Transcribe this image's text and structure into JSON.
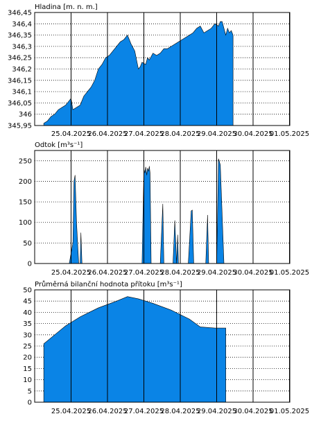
{
  "fill_color": "#0a84e6",
  "chart_data": [
    {
      "type": "area",
      "title": "Hladina [m. n. m.]",
      "ylim": [
        345.95,
        346.45
      ],
      "y_ticks": [
        "346,45",
        "346,4",
        "346,35",
        "346,3",
        "346,25",
        "346,2",
        "346,15",
        "346,1",
        "346,05",
        "346",
        "345,95"
      ],
      "x_ticks": [
        "25.04.2025",
        "26.04.2025",
        "27.04.2025",
        "28.04.2025",
        "29.04.2025",
        "30.04.2025",
        "01.05.2025"
      ],
      "grid": true,
      "x_days": [
        0,
        0.1,
        0.2,
        0.3,
        0.4,
        0.5,
        0.6,
        0.7,
        0.75,
        0.8,
        0.9,
        1.0,
        1.1,
        1.2,
        1.3,
        1.4,
        1.5,
        1.6,
        1.7,
        1.8,
        1.9,
        2.0,
        2.1,
        2.2,
        2.3,
        2.4,
        2.5,
        2.6,
        2.65,
        2.7,
        2.8,
        2.85,
        2.9,
        3.0,
        3.1,
        3.2,
        3.3,
        3.4,
        3.5,
        3.6,
        3.7,
        3.8,
        3.9,
        4.0,
        4.1,
        4.2,
        4.3,
        4.4,
        4.5,
        4.6,
        4.7,
        4.8,
        4.85,
        4.9,
        5.0,
        5.05,
        5.1,
        5.15,
        5.2
      ],
      "values": [
        345.96,
        345.97,
        345.99,
        346.0,
        346.02,
        346.03,
        346.04,
        346.06,
        346.07,
        346.02,
        346.03,
        346.04,
        346.08,
        346.1,
        346.12,
        346.15,
        346.2,
        346.22,
        346.25,
        346.26,
        346.28,
        346.3,
        346.32,
        346.33,
        346.35,
        346.31,
        346.28,
        346.2,
        346.21,
        346.23,
        346.22,
        346.25,
        346.24,
        346.27,
        346.26,
        346.27,
        346.29,
        346.29,
        346.3,
        346.31,
        346.32,
        346.33,
        346.34,
        346.35,
        346.36,
        346.38,
        346.39,
        346.36,
        346.37,
        346.38,
        346.4,
        346.39,
        346.41,
        346.41,
        346.35,
        346.38,
        346.36,
        346.37,
        346.35
      ]
    },
    {
      "type": "area",
      "title": "Odtok [m³s⁻¹]",
      "ylim": [
        0,
        275
      ],
      "y_ticks": [
        "250",
        "200",
        "150",
        "100",
        "50",
        "0"
      ],
      "x_ticks": [
        "25.04.2025",
        "26.04.2025",
        "27.04.2025",
        "28.04.2025",
        "29.04.2025",
        "30.04.2025",
        "01.05.2025"
      ],
      "grid": true,
      "x_days": [
        0,
        0.7,
        0.8,
        0.83,
        0.86,
        0.9,
        0.96,
        1.0,
        1.02,
        1.05,
        1.5,
        2.7,
        2.75,
        2.78,
        2.8,
        2.83,
        2.85,
        2.88,
        2.9,
        2.92,
        2.95,
        3.05,
        3.2,
        3.27,
        3.3,
        3.4,
        3.55,
        3.6,
        3.65,
        3.68,
        3.7,
        3.73,
        3.8,
        3.97,
        4.05,
        4.08,
        4.12,
        4.3,
        4.45,
        4.5,
        4.53,
        4.6,
        4.75,
        4.8,
        4.85,
        4.95,
        5.05,
        5.15,
        5.25,
        5.6
      ],
      "values": [
        0,
        0,
        50,
        200,
        215,
        100,
        0,
        0,
        75,
        0,
        0,
        0,
        230,
        220,
        235,
        215,
        232,
        225,
        237,
        220,
        0,
        0,
        0,
        145,
        0,
        0,
        0,
        105,
        0,
        70,
        0,
        0,
        0,
        0,
        128,
        130,
        0,
        0,
        0,
        118,
        0,
        0,
        0,
        255,
        240,
        0,
        0,
        0,
        0,
        0
      ]
    },
    {
      "type": "area",
      "title": "Průměrná bilanční hodnota přítoku   [m³s⁻¹]",
      "ylim": [
        0,
        50
      ],
      "y_ticks": [
        "50",
        "45",
        "40",
        "35",
        "30",
        "25",
        "20",
        "15",
        "10",
        "5",
        "0"
      ],
      "x_ticks": [
        "25.04.2025",
        "26.04.2025",
        "27.04.2025",
        "28.04.2025",
        "29.04.2025",
        "30.04.2025",
        "01.05.2025"
      ],
      "grid": true,
      "x_days": [
        0,
        0.3,
        0.6,
        1.0,
        1.5,
        2.0,
        2.3,
        2.6,
        3.0,
        3.5,
        4.0,
        4.3,
        4.7,
        5.0
      ],
      "values": [
        26,
        30,
        34,
        38,
        42,
        45,
        47,
        46,
        44,
        41,
        37,
        33.5,
        33,
        33
      ]
    }
  ]
}
